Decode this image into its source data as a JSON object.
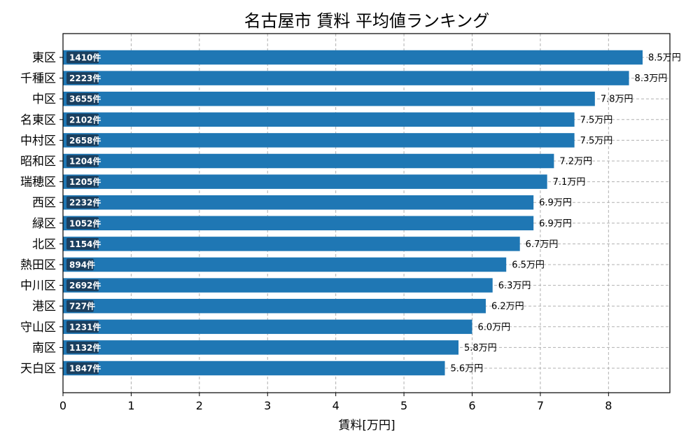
{
  "chart_data": {
    "type": "bar",
    "orientation": "horizontal",
    "title": "名古屋市 賃料 平均値ランキング",
    "xlabel": "賃料[万円]",
    "ylabel": "",
    "xlim": [
      0,
      8.9
    ],
    "xticks": [
      0,
      1,
      2,
      3,
      4,
      5,
      6,
      7,
      8
    ],
    "grid": true,
    "bar_color": "#1f77b4",
    "count_badge_color": "#1a3550",
    "value_suffix": "万円",
    "count_suffix": "件",
    "categories": [
      "東区",
      "千種区",
      "中区",
      "名東区",
      "中村区",
      "昭和区",
      "瑞穂区",
      "西区",
      "緑区",
      "北区",
      "熱田区",
      "中川区",
      "港区",
      "守山区",
      "南区",
      "天白区"
    ],
    "values": [
      8.5,
      8.3,
      7.8,
      7.5,
      7.5,
      7.2,
      7.1,
      6.9,
      6.9,
      6.7,
      6.5,
      6.3,
      6.2,
      6.0,
      5.8,
      5.6
    ],
    "counts": [
      1410,
      2223,
      3655,
      2102,
      2658,
      1204,
      1205,
      2232,
      1052,
      1154,
      894,
      2692,
      727,
      1231,
      1132,
      1847
    ]
  }
}
